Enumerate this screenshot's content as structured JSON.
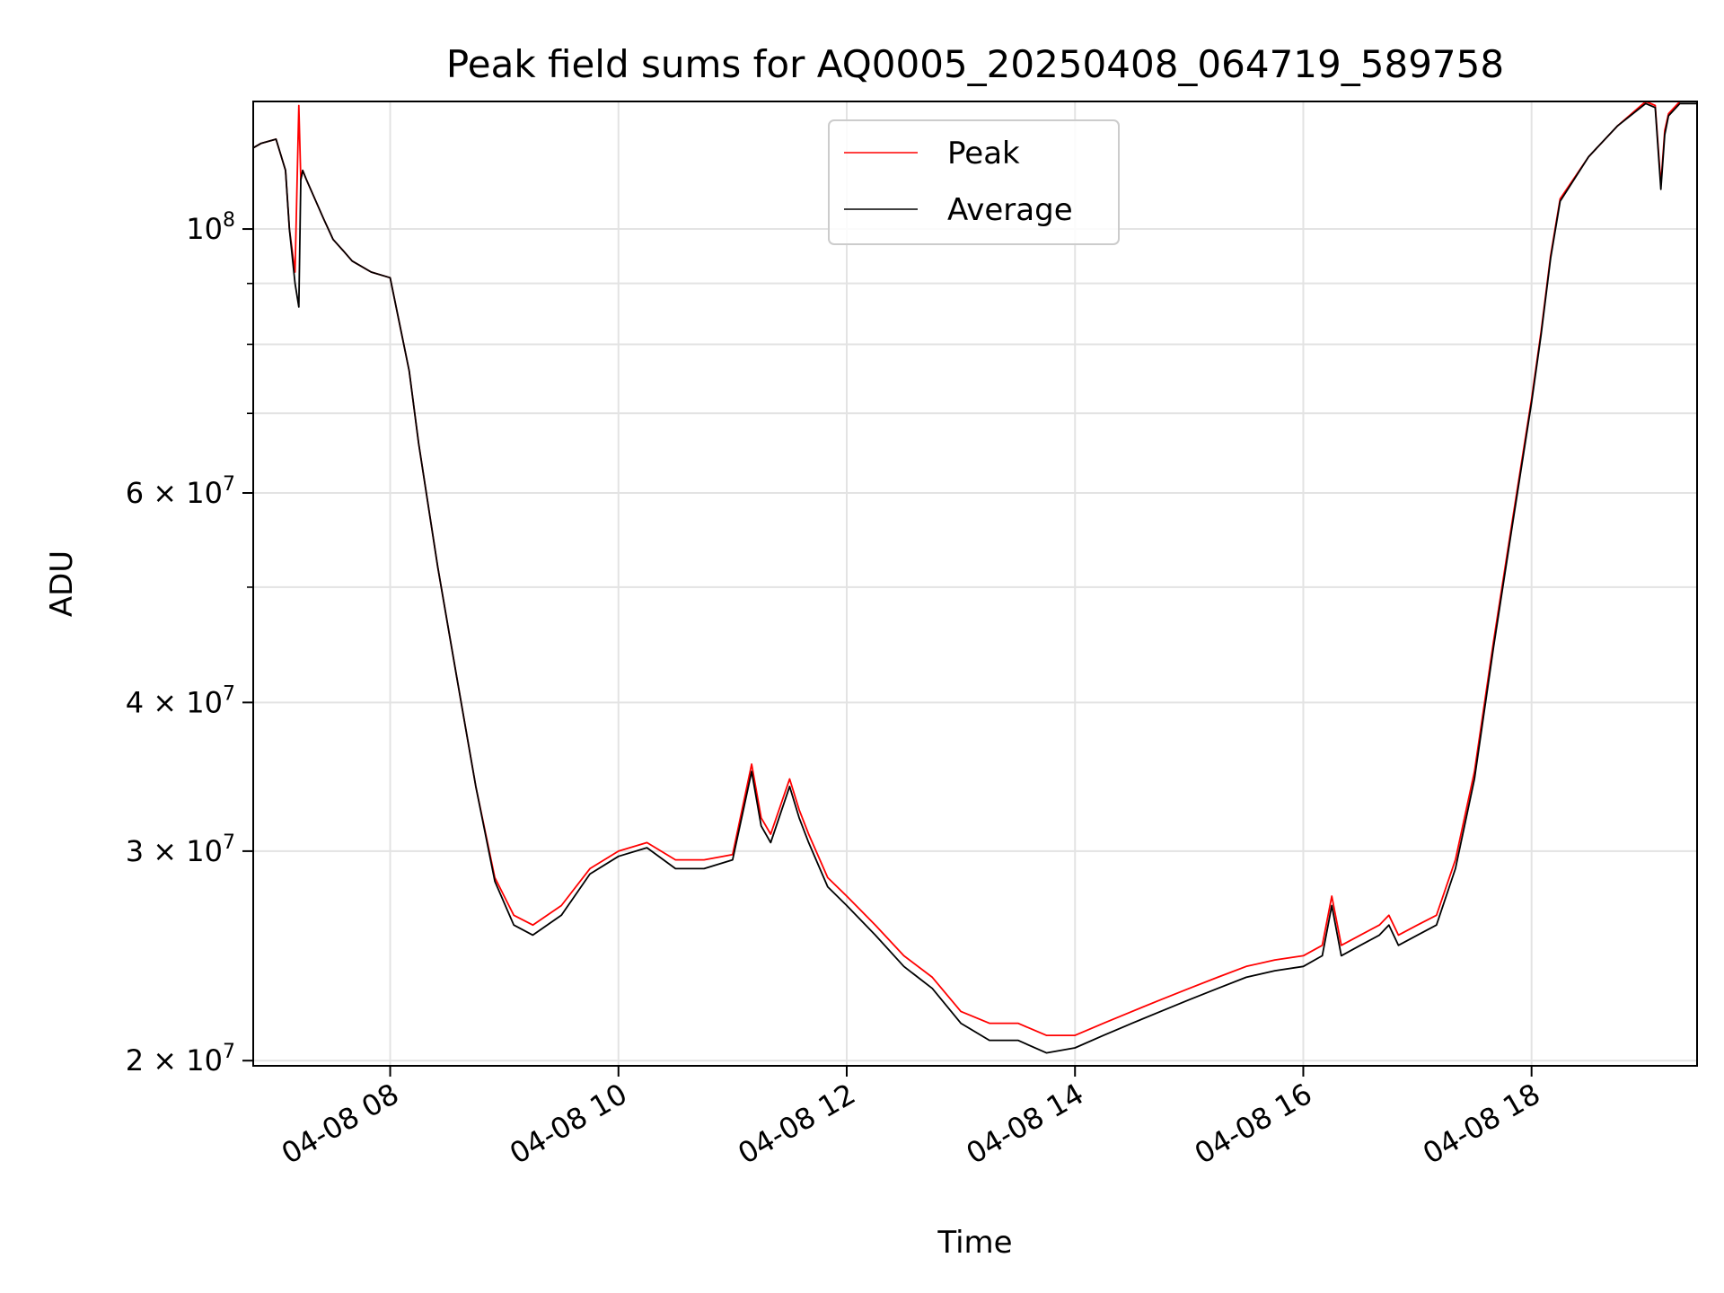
{
  "chart_data": {
    "type": "line",
    "title": "Peak field sums for AQ0005_20250408_064719_589758",
    "xlabel": "Time",
    "ylabel": "ADU",
    "yscale": "log",
    "grid": true,
    "legend_position": "top-center",
    "xlim": [
      "2025-04-08 06:48",
      "2025-04-08 19:27"
    ],
    "ylim": [
      19800000,
      128000000
    ],
    "x_ticks": [
      {
        "value": "2025-04-08 08:00",
        "label": "04-08 08"
      },
      {
        "value": "2025-04-08 10:00",
        "label": "04-08 10"
      },
      {
        "value": "2025-04-08 12:00",
        "label": "04-08 12"
      },
      {
        "value": "2025-04-08 14:00",
        "label": "04-08 14"
      },
      {
        "value": "2025-04-08 16:00",
        "label": "04-08 16"
      },
      {
        "value": "2025-04-08 18:00",
        "label": "04-08 18"
      }
    ],
    "y_ticks_major": [
      {
        "value": 100000000,
        "base": "10",
        "exp": "8"
      },
      {
        "value": 60000000,
        "base": "6 × 10",
        "exp": "7"
      },
      {
        "value": 40000000,
        "base": "4 × 10",
        "exp": "7"
      },
      {
        "value": 30000000,
        "base": "3 × 10",
        "exp": "7"
      },
      {
        "value": 20000000,
        "base": "2 × 10",
        "exp": "7"
      }
    ],
    "y_ticks_minor": [
      90000000,
      80000000,
      70000000,
      50000000
    ],
    "series": [
      {
        "name": "Peak",
        "color": "#ff0000",
        "x": [
          "2025-04-08 06:48",
          "2025-04-08 06:52",
          "2025-04-08 07:00",
          "2025-04-08 07:05",
          "2025-04-08 07:07",
          "2025-04-08 07:10",
          "2025-04-08 07:12",
          "2025-04-08 07:13",
          "2025-04-08 07:14",
          "2025-04-08 07:16",
          "2025-04-08 07:25",
          "2025-04-08 07:30",
          "2025-04-08 07:35",
          "2025-04-08 07:40",
          "2025-04-08 07:50",
          "2025-04-08 08:00",
          "2025-04-08 08:10",
          "2025-04-08 08:15",
          "2025-04-08 08:25",
          "2025-04-08 08:35",
          "2025-04-08 08:45",
          "2025-04-08 08:55",
          "2025-04-08 09:05",
          "2025-04-08 09:15",
          "2025-04-08 09:30",
          "2025-04-08 09:45",
          "2025-04-08 10:00",
          "2025-04-08 10:15",
          "2025-04-08 10:30",
          "2025-04-08 10:45",
          "2025-04-08 11:00",
          "2025-04-08 11:10",
          "2025-04-08 11:15",
          "2025-04-08 11:20",
          "2025-04-08 11:30",
          "2025-04-08 11:35",
          "2025-04-08 11:40",
          "2025-04-08 11:50",
          "2025-04-08 12:00",
          "2025-04-08 12:15",
          "2025-04-08 12:30",
          "2025-04-08 12:45",
          "2025-04-08 13:00",
          "2025-04-08 13:15",
          "2025-04-08 13:30",
          "2025-04-08 13:45",
          "2025-04-08 14:00",
          "2025-04-08 14:15",
          "2025-04-08 14:30",
          "2025-04-08 14:45",
          "2025-04-08 15:00",
          "2025-04-08 15:15",
          "2025-04-08 15:30",
          "2025-04-08 15:45",
          "2025-04-08 16:00",
          "2025-04-08 16:10",
          "2025-04-08 16:15",
          "2025-04-08 16:20",
          "2025-04-08 16:30",
          "2025-04-08 16:40",
          "2025-04-08 16:45",
          "2025-04-08 16:50",
          "2025-04-08 17:00",
          "2025-04-08 17:10",
          "2025-04-08 17:20",
          "2025-04-08 17:30",
          "2025-04-08 17:40",
          "2025-04-08 17:50",
          "2025-04-08 18:00",
          "2025-04-08 18:05",
          "2025-04-08 18:10",
          "2025-04-08 18:15",
          "2025-04-08 18:30",
          "2025-04-08 18:45",
          "2025-04-08 19:00",
          "2025-04-08 19:05",
          "2025-04-08 19:08",
          "2025-04-08 19:10",
          "2025-04-08 19:12",
          "2025-04-08 19:18",
          "2025-04-08 19:27"
        ],
        "y": [
          117000000,
          118000000,
          119000000,
          112000000,
          100000000,
          92000000,
          127000000,
          110000000,
          112000000,
          110000000,
          102000000,
          98000000,
          96000000,
          94000000,
          92000000,
          91000000,
          76000000,
          66000000,
          52000000,
          42000000,
          34000000,
          28500000,
          26500000,
          26000000,
          27000000,
          29000000,
          30000000,
          30500000,
          29500000,
          29500000,
          29800000,
          35500000,
          32000000,
          31000000,
          34500000,
          32500000,
          31000000,
          28500000,
          27500000,
          26000000,
          24500000,
          23500000,
          22000000,
          21500000,
          21500000,
          21000000,
          21000000,
          21500000,
          22000000,
          22500000,
          23000000,
          23500000,
          24000000,
          24300000,
          24500000,
          25000000,
          27500000,
          25000000,
          25500000,
          26000000,
          26500000,
          25500000,
          26000000,
          26500000,
          29500000,
          35000000,
          45000000,
          57000000,
          72000000,
          82000000,
          95000000,
          106000000,
          115000000,
          122000000,
          128000000,
          127000000,
          109000000,
          121000000,
          125000000,
          128000000,
          128000000
        ]
      },
      {
        "name": "Average",
        "color": "#000000",
        "x": [
          "2025-04-08 06:48",
          "2025-04-08 06:52",
          "2025-04-08 07:00",
          "2025-04-08 07:05",
          "2025-04-08 07:07",
          "2025-04-08 07:10",
          "2025-04-08 07:12",
          "2025-04-08 07:13",
          "2025-04-08 07:14",
          "2025-04-08 07:16",
          "2025-04-08 07:25",
          "2025-04-08 07:30",
          "2025-04-08 07:35",
          "2025-04-08 07:40",
          "2025-04-08 07:50",
          "2025-04-08 08:00",
          "2025-04-08 08:10",
          "2025-04-08 08:15",
          "2025-04-08 08:25",
          "2025-04-08 08:35",
          "2025-04-08 08:45",
          "2025-04-08 08:55",
          "2025-04-08 09:05",
          "2025-04-08 09:15",
          "2025-04-08 09:30",
          "2025-04-08 09:45",
          "2025-04-08 10:00",
          "2025-04-08 10:15",
          "2025-04-08 10:30",
          "2025-04-08 10:45",
          "2025-04-08 11:00",
          "2025-04-08 11:10",
          "2025-04-08 11:15",
          "2025-04-08 11:20",
          "2025-04-08 11:30",
          "2025-04-08 11:35",
          "2025-04-08 11:40",
          "2025-04-08 11:50",
          "2025-04-08 12:00",
          "2025-04-08 12:15",
          "2025-04-08 12:30",
          "2025-04-08 12:45",
          "2025-04-08 13:00",
          "2025-04-08 13:15",
          "2025-04-08 13:30",
          "2025-04-08 13:45",
          "2025-04-08 14:00",
          "2025-04-08 14:15",
          "2025-04-08 14:30",
          "2025-04-08 14:45",
          "2025-04-08 15:00",
          "2025-04-08 15:15",
          "2025-04-08 15:30",
          "2025-04-08 15:45",
          "2025-04-08 16:00",
          "2025-04-08 16:10",
          "2025-04-08 16:15",
          "2025-04-08 16:20",
          "2025-04-08 16:30",
          "2025-04-08 16:40",
          "2025-04-08 16:45",
          "2025-04-08 16:50",
          "2025-04-08 17:00",
          "2025-04-08 17:10",
          "2025-04-08 17:20",
          "2025-04-08 17:30",
          "2025-04-08 17:40",
          "2025-04-08 17:50",
          "2025-04-08 18:00",
          "2025-04-08 18:05",
          "2025-04-08 18:10",
          "2025-04-08 18:15",
          "2025-04-08 18:30",
          "2025-04-08 18:45",
          "2025-04-08 19:00",
          "2025-04-08 19:05",
          "2025-04-08 19:08",
          "2025-04-08 19:10",
          "2025-04-08 19:12",
          "2025-04-08 19:18",
          "2025-04-08 19:27"
        ],
        "y": [
          117000000,
          118000000,
          119000000,
          112000000,
          100000000,
          90000000,
          86000000,
          110000000,
          112000000,
          110000000,
          102000000,
          98000000,
          96000000,
          94000000,
          92000000,
          91000000,
          76000000,
          66000000,
          52000000,
          42000000,
          34000000,
          28300000,
          26000000,
          25500000,
          26500000,
          28700000,
          29700000,
          30200000,
          29000000,
          29000000,
          29500000,
          35000000,
          31500000,
          30500000,
          34000000,
          32000000,
          30500000,
          28000000,
          27000000,
          25500000,
          24000000,
          23000000,
          21500000,
          20800000,
          20800000,
          20300000,
          20500000,
          21000000,
          21500000,
          22000000,
          22500000,
          23000000,
          23500000,
          23800000,
          24000000,
          24500000,
          27000000,
          24500000,
          25000000,
          25500000,
          26000000,
          25000000,
          25500000,
          26000000,
          29000000,
          34500000,
          44500000,
          56500000,
          71500000,
          81500000,
          94500000,
          105500000,
          115000000,
          122000000,
          127500000,
          126500000,
          108000000,
          120000000,
          124500000,
          127500000,
          127500000
        ]
      }
    ]
  }
}
